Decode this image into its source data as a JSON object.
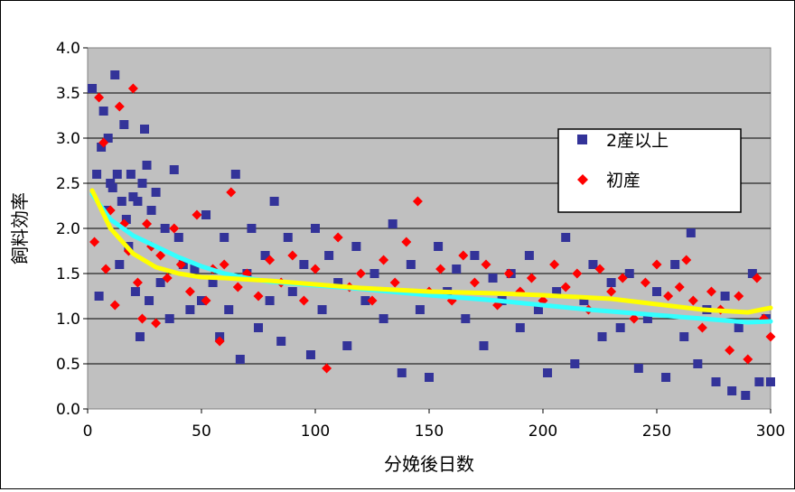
{
  "chart_data": {
    "type": "scatter",
    "xlabel": "分娩後日数",
    "ylabel": "飼料効率",
    "xlim": [
      0,
      300
    ],
    "ylim": [
      0,
      4.0
    ],
    "x_ticks": [
      "0",
      "50",
      "100",
      "150",
      "200",
      "250",
      "300"
    ],
    "y_ticks": [
      "0.0",
      "0.5",
      "1.0",
      "1.5",
      "2.0",
      "2.5",
      "3.0",
      "3.5",
      "4.0"
    ],
    "grid": "horizontal",
    "legend_position": "top-right",
    "plot_background": "#c0c0c0",
    "series": [
      {
        "name": "2産以上",
        "marker": "square",
        "color": "#333399",
        "trend_color": "#33ffff",
        "trend": [
          [
            2,
            2.38
          ],
          [
            10,
            2.1
          ],
          [
            20,
            1.92
          ],
          [
            30,
            1.8
          ],
          [
            40,
            1.68
          ],
          [
            50,
            1.58
          ],
          [
            60,
            1.5
          ],
          [
            70,
            1.45
          ],
          [
            80,
            1.41
          ],
          [
            100,
            1.37
          ],
          [
            120,
            1.33
          ],
          [
            150,
            1.26
          ],
          [
            180,
            1.2
          ],
          [
            200,
            1.15
          ],
          [
            220,
            1.1
          ],
          [
            250,
            1.04
          ],
          [
            270,
            1.0
          ],
          [
            290,
            0.96
          ],
          [
            300,
            0.97
          ]
        ],
        "points": [
          [
            2,
            3.55
          ],
          [
            4,
            2.6
          ],
          [
            5,
            1.25
          ],
          [
            6,
            2.9
          ],
          [
            7,
            3.3
          ],
          [
            8,
            2.2
          ],
          [
            9,
            3.0
          ],
          [
            10,
            2.5
          ],
          [
            11,
            2.45
          ],
          [
            12,
            3.7
          ],
          [
            13,
            2.6
          ],
          [
            14,
            1.6
          ],
          [
            15,
            2.3
          ],
          [
            16,
            3.15
          ],
          [
            17,
            2.1
          ],
          [
            18,
            1.8
          ],
          [
            19,
            2.6
          ],
          [
            20,
            2.35
          ],
          [
            21,
            1.3
          ],
          [
            22,
            2.3
          ],
          [
            23,
            0.8
          ],
          [
            24,
            2.5
          ],
          [
            25,
            3.1
          ],
          [
            26,
            2.7
          ],
          [
            27,
            1.2
          ],
          [
            28,
            2.2
          ],
          [
            30,
            2.4
          ],
          [
            32,
            1.4
          ],
          [
            34,
            2.0
          ],
          [
            36,
            1.0
          ],
          [
            38,
            2.65
          ],
          [
            40,
            1.9
          ],
          [
            42,
            1.6
          ],
          [
            45,
            1.1
          ],
          [
            47,
            1.55
          ],
          [
            50,
            1.2
          ],
          [
            52,
            2.15
          ],
          [
            55,
            1.4
          ],
          [
            58,
            0.8
          ],
          [
            60,
            1.9
          ],
          [
            62,
            1.1
          ],
          [
            65,
            2.6
          ],
          [
            67,
            0.55
          ],
          [
            70,
            1.5
          ],
          [
            72,
            2.0
          ],
          [
            75,
            0.9
          ],
          [
            78,
            1.7
          ],
          [
            80,
            1.2
          ],
          [
            82,
            2.3
          ],
          [
            85,
            0.75
          ],
          [
            88,
            1.9
          ],
          [
            90,
            1.3
          ],
          [
            95,
            1.6
          ],
          [
            98,
            0.6
          ],
          [
            100,
            2.0
          ],
          [
            103,
            1.1
          ],
          [
            106,
            1.7
          ],
          [
            110,
            1.4
          ],
          [
            114,
            0.7
          ],
          [
            118,
            1.8
          ],
          [
            122,
            1.2
          ],
          [
            126,
            1.5
          ],
          [
            130,
            1.0
          ],
          [
            134,
            2.05
          ],
          [
            138,
            0.4
          ],
          [
            142,
            1.6
          ],
          [
            146,
            1.1
          ],
          [
            150,
            0.35
          ],
          [
            154,
            1.8
          ],
          [
            158,
            1.3
          ],
          [
            162,
            1.55
          ],
          [
            166,
            1.0
          ],
          [
            170,
            1.7
          ],
          [
            174,
            0.7
          ],
          [
            178,
            1.45
          ],
          [
            182,
            1.2
          ],
          [
            186,
            1.5
          ],
          [
            190,
            0.9
          ],
          [
            194,
            1.7
          ],
          [
            198,
            1.1
          ],
          [
            202,
            0.4
          ],
          [
            206,
            1.3
          ],
          [
            210,
            1.9
          ],
          [
            214,
            0.5
          ],
          [
            218,
            1.2
          ],
          [
            222,
            1.6
          ],
          [
            226,
            0.8
          ],
          [
            230,
            1.4
          ],
          [
            234,
            0.9
          ],
          [
            238,
            1.5
          ],
          [
            242,
            0.45
          ],
          [
            246,
            1.0
          ],
          [
            250,
            1.3
          ],
          [
            254,
            0.35
          ],
          [
            258,
            1.6
          ],
          [
            262,
            0.8
          ],
          [
            265,
            1.95
          ],
          [
            268,
            0.5
          ],
          [
            272,
            1.1
          ],
          [
            276,
            0.3
          ],
          [
            280,
            1.25
          ],
          [
            283,
            0.2
          ],
          [
            286,
            0.9
          ],
          [
            289,
            0.15
          ],
          [
            292,
            1.5
          ],
          [
            295,
            0.3
          ],
          [
            298,
            1.0
          ],
          [
            300,
            0.3
          ]
        ]
      },
      {
        "name": "初産",
        "marker": "diamond",
        "color": "#ff0000",
        "trend_color": "#ffff00",
        "trend": [
          [
            2,
            2.42
          ],
          [
            10,
            2.0
          ],
          [
            20,
            1.72
          ],
          [
            30,
            1.57
          ],
          [
            40,
            1.5
          ],
          [
            50,
            1.46
          ],
          [
            60,
            1.45
          ],
          [
            80,
            1.42
          ],
          [
            100,
            1.38
          ],
          [
            120,
            1.34
          ],
          [
            150,
            1.3
          ],
          [
            180,
            1.28
          ],
          [
            200,
            1.26
          ],
          [
            230,
            1.22
          ],
          [
            250,
            1.16
          ],
          [
            270,
            1.1
          ],
          [
            290,
            1.07
          ],
          [
            300,
            1.12
          ]
        ],
        "points": [
          [
            3,
            1.85
          ],
          [
            5,
            3.45
          ],
          [
            7,
            2.95
          ],
          [
            8,
            1.55
          ],
          [
            10,
            2.2
          ],
          [
            12,
            1.15
          ],
          [
            14,
            3.35
          ],
          [
            16,
            2.05
          ],
          [
            18,
            1.75
          ],
          [
            20,
            3.55
          ],
          [
            22,
            1.4
          ],
          [
            24,
            1.0
          ],
          [
            26,
            2.05
          ],
          [
            28,
            1.8
          ],
          [
            30,
            0.95
          ],
          [
            32,
            1.7
          ],
          [
            35,
            1.45
          ],
          [
            38,
            2.0
          ],
          [
            41,
            1.6
          ],
          [
            45,
            1.3
          ],
          [
            48,
            2.15
          ],
          [
            52,
            1.2
          ],
          [
            55,
            1.55
          ],
          [
            58,
            0.75
          ],
          [
            60,
            1.6
          ],
          [
            63,
            2.4
          ],
          [
            66,
            1.35
          ],
          [
            70,
            1.5
          ],
          [
            75,
            1.25
          ],
          [
            80,
            1.65
          ],
          [
            85,
            1.4
          ],
          [
            90,
            1.7
          ],
          [
            95,
            1.2
          ],
          [
            100,
            1.55
          ],
          [
            105,
            0.45
          ],
          [
            110,
            1.9
          ],
          [
            115,
            1.35
          ],
          [
            120,
            1.5
          ],
          [
            125,
            1.2
          ],
          [
            130,
            1.65
          ],
          [
            135,
            1.4
          ],
          [
            140,
            1.85
          ],
          [
            145,
            2.3
          ],
          [
            150,
            1.3
          ],
          [
            155,
            1.55
          ],
          [
            160,
            1.2
          ],
          [
            165,
            1.7
          ],
          [
            170,
            1.4
          ],
          [
            175,
            1.6
          ],
          [
            180,
            1.15
          ],
          [
            185,
            1.5
          ],
          [
            190,
            1.3
          ],
          [
            195,
            1.45
          ],
          [
            200,
            1.2
          ],
          [
            205,
            1.6
          ],
          [
            210,
            1.35
          ],
          [
            215,
            1.5
          ],
          [
            220,
            1.1
          ],
          [
            225,
            1.55
          ],
          [
            230,
            1.3
          ],
          [
            235,
            1.45
          ],
          [
            240,
            1.0
          ],
          [
            245,
            1.4
          ],
          [
            250,
            1.6
          ],
          [
            255,
            1.25
          ],
          [
            260,
            1.35
          ],
          [
            263,
            1.65
          ],
          [
            266,
            1.2
          ],
          [
            270,
            0.9
          ],
          [
            274,
            1.3
          ],
          [
            278,
            1.1
          ],
          [
            282,
            0.65
          ],
          [
            286,
            1.25
          ],
          [
            290,
            0.55
          ],
          [
            294,
            1.45
          ],
          [
            297,
            1.0
          ],
          [
            300,
            0.8
          ]
        ]
      }
    ]
  }
}
